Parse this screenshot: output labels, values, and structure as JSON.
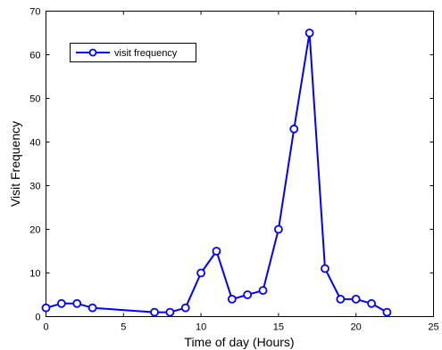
{
  "chart_data": {
    "type": "line",
    "title": "",
    "xlabel": "Time of day (Hours)",
    "ylabel": "Visit Frequency",
    "xlim": [
      0,
      25
    ],
    "ylim": [
      0,
      70
    ],
    "xticks": [
      0,
      5,
      10,
      15,
      20,
      25
    ],
    "yticks": [
      0,
      10,
      20,
      30,
      40,
      50,
      60,
      70
    ],
    "grid": false,
    "legend": {
      "position": "top-left",
      "entries": [
        "visit frequency"
      ]
    },
    "series": [
      {
        "name": "visit frequency",
        "color": "#0000ff",
        "marker": "circle",
        "x": [
          0,
          1,
          2,
          3,
          7,
          8,
          9,
          10,
          11,
          12,
          13,
          14,
          15,
          16,
          17,
          18,
          19,
          20,
          21,
          22
        ],
        "y": [
          2,
          3,
          3,
          2,
          1,
          1,
          2,
          10,
          15,
          4,
          5,
          6,
          20,
          43,
          65,
          11,
          4,
          4,
          3,
          1
        ]
      }
    ]
  }
}
